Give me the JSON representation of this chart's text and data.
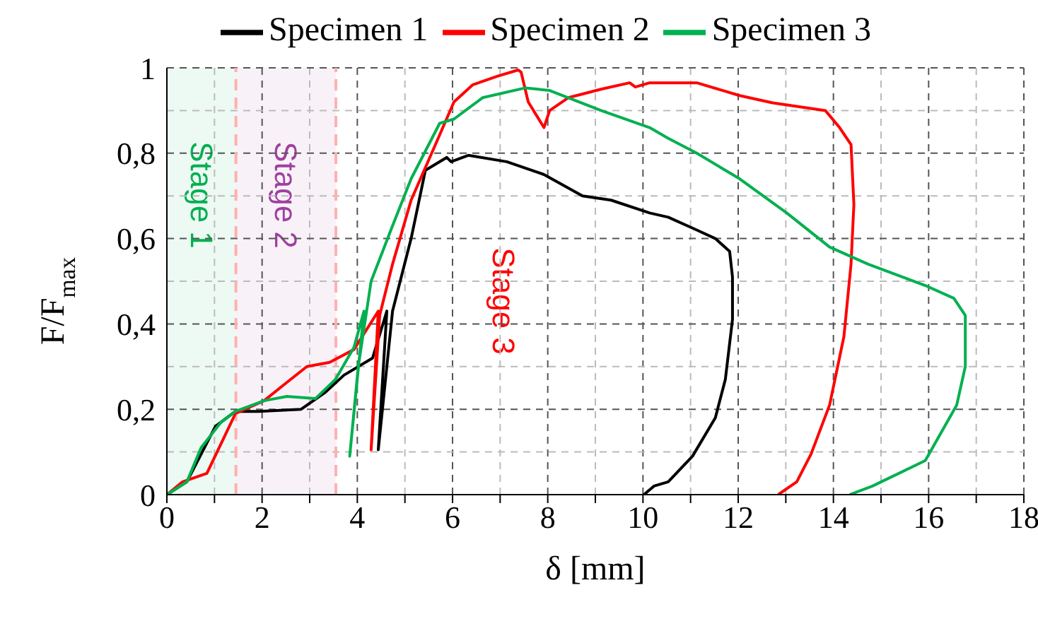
{
  "chart_data": {
    "type": "line",
    "xlabel": "δ [mm]",
    "ylabel": "F/F$_{max}$",
    "legend": "top",
    "grid": true,
    "line_style": "solid",
    "marker": "none",
    "xlim": [
      0,
      18
    ],
    "ylim": [
      0,
      1
    ],
    "xticks": [
      0,
      {
        "value": 1,
        "label": null
      },
      2,
      {
        "value": 3,
        "label": null
      },
      4,
      {
        "value": 5,
        "label": null
      },
      6,
      {
        "value": 7,
        "label": null
      },
      8,
      {
        "value": 9,
        "label": null
      },
      10,
      {
        "value": 11,
        "label": null
      },
      12,
      {
        "value": 13,
        "label": null
      },
      14,
      {
        "value": 15,
        "label": null
      },
      16,
      {
        "value": 17,
        "label": null
      },
      18
    ],
    "yticks": [
      0,
      {
        "value": 0.1,
        "label": null
      },
      {
        "value": 0.2,
        "label": "0,2"
      },
      {
        "value": 0.3,
        "label": null
      },
      {
        "value": 0.4,
        "label": "0,4"
      },
      {
        "value": 0.5,
        "label": null
      },
      {
        "value": 0.6,
        "label": "0,6"
      },
      {
        "value": 0.7,
        "label": null
      },
      {
        "value": 0.8,
        "label": "0,8"
      },
      {
        "value": 0.9,
        "label": null
      },
      1
    ],
    "bands": [
      {
        "axis": "x",
        "from": 0,
        "to": 1.45,
        "label": "Stage 1",
        "color": "#00b050"
      },
      {
        "axis": "x",
        "from": 1.45,
        "to": 3.55,
        "label": "Stage 2",
        "color": "#a040a0"
      }
    ],
    "ref_lines": [
      {
        "axis": "x",
        "value": 1.45,
        "color": "#ffb0b0",
        "line_style": "dashed"
      },
      {
        "axis": "x",
        "value": 3.55,
        "color": "#ffb0b0",
        "line_style": "dashed"
      }
    ],
    "annotations": [
      "Stage 3"
    ],
    "series": [
      {
        "name": "Specimen 1",
        "color": "#000000",
        "x": [
          0,
          0.42,
          1.02,
          1.44,
          1.92,
          2.82,
          3.33,
          3.72,
          4.32,
          4.62,
          4.44,
          4.74,
          5.13,
          5.43,
          5.88,
          5.97,
          6.33,
          7.14,
          7.92,
          8.73,
          9.33,
          10.14,
          10.53,
          11.13,
          11.52,
          11.82,
          11.88,
          11.88,
          11.73,
          11.52,
          11.04,
          10.53,
          10.23,
          10.02
        ],
        "values": [
          0,
          0.03,
          0.16,
          0.195,
          0.195,
          0.2,
          0.24,
          0.28,
          0.32,
          0.43,
          0.105,
          0.43,
          0.6,
          0.76,
          0.79,
          0.78,
          0.795,
          0.78,
          0.75,
          0.7,
          0.69,
          0.66,
          0.65,
          0.62,
          0.6,
          0.57,
          0.51,
          0.41,
          0.27,
          0.18,
          0.09,
          0.03,
          0.02,
          0
        ]
      },
      {
        "name": "Specimen 2",
        "color": "#ff0000",
        "x": [
          0,
          0.33,
          0.84,
          1.14,
          1.44,
          2.04,
          2.43,
          2.94,
          3.42,
          3.93,
          4.44,
          4.29,
          4.47,
          4.74,
          5.13,
          5.64,
          6.03,
          6.42,
          6.93,
          7.38,
          7.44,
          7.59,
          7.92,
          8.04,
          8.43,
          9.12,
          9.72,
          9.84,
          10.14,
          11.13,
          12.03,
          12.72,
          13.83,
          14.13,
          14.37,
          14.43,
          14.37,
          14.22,
          13.92,
          13.53,
          13.23,
          12.84
        ],
        "values": [
          0,
          0.03,
          0.05,
          0.12,
          0.19,
          0.22,
          0.255,
          0.3,
          0.31,
          0.34,
          0.43,
          0.105,
          0.42,
          0.54,
          0.69,
          0.82,
          0.92,
          0.96,
          0.98,
          0.995,
          0.99,
          0.92,
          0.86,
          0.9,
          0.93,
          0.95,
          0.965,
          0.955,
          0.965,
          0.965,
          0.935,
          0.918,
          0.9,
          0.86,
          0.82,
          0.68,
          0.54,
          0.37,
          0.21,
          0.095,
          0.03,
          0
        ]
      },
      {
        "name": "Specimen 3",
        "color": "#00b050",
        "x": [
          0,
          0.42,
          0.72,
          1.14,
          1.44,
          2.04,
          2.52,
          3.12,
          3.54,
          3.93,
          4.14,
          3.84,
          4.02,
          4.29,
          4.74,
          5.13,
          5.73,
          6.03,
          6.63,
          7.53,
          8.04,
          9.12,
          10.14,
          10.53,
          11.13,
          12.03,
          13.02,
          13.92,
          14.73,
          15.93,
          16.53,
          16.77,
          16.77,
          16.59,
          15.93,
          14.82,
          14.34
        ],
        "values": [
          0,
          0.03,
          0.11,
          0.17,
          0.195,
          0.22,
          0.23,
          0.225,
          0.27,
          0.345,
          0.43,
          0.09,
          0.3,
          0.5,
          0.63,
          0.74,
          0.87,
          0.88,
          0.93,
          0.953,
          0.947,
          0.9,
          0.86,
          0.835,
          0.8,
          0.74,
          0.66,
          0.58,
          0.54,
          0.49,
          0.46,
          0.42,
          0.3,
          0.21,
          0.08,
          0.02,
          0
        ]
      }
    ]
  }
}
